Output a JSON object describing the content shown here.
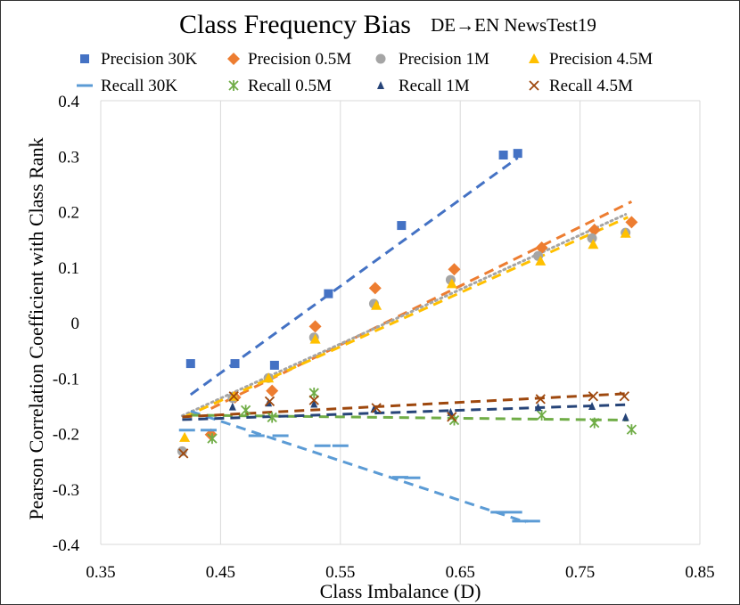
{
  "chart_data": {
    "type": "scatter",
    "title": "Class Frequency Bias",
    "subtitle": "DE→EN NewsTest19",
    "xlabel": "Class Imbalance (D)",
    "ylabel": "Pearson Correlation Coefficient with Class Rank",
    "xlim": [
      0.35,
      0.85
    ],
    "ylim": [
      -0.4,
      0.4
    ],
    "xticks": [
      0.35,
      0.45,
      0.55,
      0.65,
      0.75,
      0.85
    ],
    "yticks": [
      -0.4,
      -0.3,
      -0.2,
      -0.1,
      0,
      0.1,
      0.2,
      0.3,
      0.4
    ],
    "xtick_labels": [
      "0.35",
      "0.45",
      "0.55",
      "0.65",
      "0.75",
      "0.85"
    ],
    "ytick_labels": [
      "-0.4",
      "-0.3",
      "-0.2",
      "-0.1",
      "0",
      "0.1",
      "0.2",
      "0.3",
      "0.4"
    ],
    "grid": "vertical",
    "legend_position": "top",
    "series": [
      {
        "name": "Precision 30K",
        "marker": "square",
        "color": "#4472c4",
        "x": [
          0.425,
          0.462,
          0.495,
          0.54,
          0.601,
          0.686,
          0.698
        ],
        "y": [
          -0.074,
          -0.074,
          -0.077,
          0.052,
          0.175,
          0.302,
          0.305
        ],
        "trend": {
          "x": [
            0.425,
            0.698
          ],
          "y": [
            -0.13,
            0.297
          ]
        }
      },
      {
        "name": "Precision 0.5M",
        "marker": "diamond",
        "color": "#ed7d31",
        "x": [
          0.442,
          0.462,
          0.493,
          0.529,
          0.579,
          0.645,
          0.718,
          0.762,
          0.793
        ],
        "y": [
          -0.202,
          -0.135,
          -0.123,
          -0.007,
          0.062,
          0.096,
          0.135,
          0.167,
          0.181
        ],
        "trend": {
          "x": [
            0.442,
            0.793
          ],
          "y": [
            -0.155,
            0.218
          ]
        }
      },
      {
        "name": "Precision 1M",
        "marker": "circle",
        "color": "#a5a5a5",
        "x": [
          0.418,
          0.46,
          0.49,
          0.528,
          0.578,
          0.642,
          0.715,
          0.76,
          0.788
        ],
        "y": [
          -0.232,
          -0.136,
          -0.1,
          -0.027,
          0.034,
          0.077,
          0.12,
          0.152,
          0.162
        ],
        "trend": {
          "x": [
            0.418,
            0.788
          ],
          "y": [
            -0.168,
            0.195
          ]
        }
      },
      {
        "name": "Precision 4.5M",
        "marker": "triangle",
        "color": "#ffc000",
        "x": [
          0.42,
          0.461,
          0.49,
          0.529,
          0.58,
          0.643,
          0.717,
          0.761,
          0.788
        ],
        "y": [
          -0.207,
          -0.133,
          -0.1,
          -0.03,
          0.031,
          0.07,
          0.111,
          0.141,
          0.161
        ],
        "trend": {
          "x": [
            0.42,
            0.79
          ],
          "y": [
            -0.17,
            0.19
          ]
        }
      },
      {
        "name": "Recall 30K",
        "marker": "dash",
        "color": "#5b9bd5",
        "x": [
          0.422,
          0.44,
          0.48,
          0.5,
          0.535,
          0.55,
          0.6,
          0.61,
          0.682,
          0.695,
          0.7,
          0.71
        ],
        "y": [
          -0.194,
          -0.194,
          -0.204,
          -0.204,
          -0.222,
          -0.222,
          -0.279,
          -0.28,
          -0.342,
          -0.342,
          -0.358,
          -0.358
        ],
        "trend": {
          "x": [
            0.425,
            0.705
          ],
          "y": [
            -0.16,
            -0.36
          ]
        }
      },
      {
        "name": "Recall 0.5M",
        "marker": "cross",
        "color": "#70ad47",
        "x": [
          0.443,
          0.471,
          0.493,
          0.528,
          0.645,
          0.718,
          0.762,
          0.793
        ],
        "y": [
          -0.209,
          -0.158,
          -0.171,
          -0.127,
          -0.176,
          -0.167,
          -0.181,
          -0.193
        ],
        "trend": {
          "x": [
            0.425,
            0.79
          ],
          "y": [
            -0.167,
            -0.176
          ]
        }
      },
      {
        "name": "Recall 1M",
        "marker": "triangle-small",
        "color": "#264478",
        "x": [
          0.46,
          0.49,
          0.528,
          0.578,
          0.642,
          0.715,
          0.76,
          0.788
        ],
        "y": [
          -0.152,
          -0.145,
          -0.147,
          -0.156,
          -0.162,
          -0.153,
          -0.151,
          -0.171
        ],
        "trend": {
          "x": [
            0.418,
            0.79
          ],
          "y": [
            -0.175,
            -0.148
          ]
        }
      },
      {
        "name": "Recall 4.5M",
        "marker": "x",
        "color": "#9e480e",
        "x": [
          0.419,
          0.461,
          0.491,
          0.528,
          0.58,
          0.643,
          0.717,
          0.761,
          0.787
        ],
        "y": [
          -0.236,
          -0.133,
          -0.142,
          -0.14,
          -0.154,
          -0.17,
          -0.138,
          -0.133,
          -0.133
        ],
        "trend": {
          "x": [
            0.418,
            0.79
          ],
          "y": [
            -0.17,
            -0.128
          ]
        }
      }
    ]
  }
}
